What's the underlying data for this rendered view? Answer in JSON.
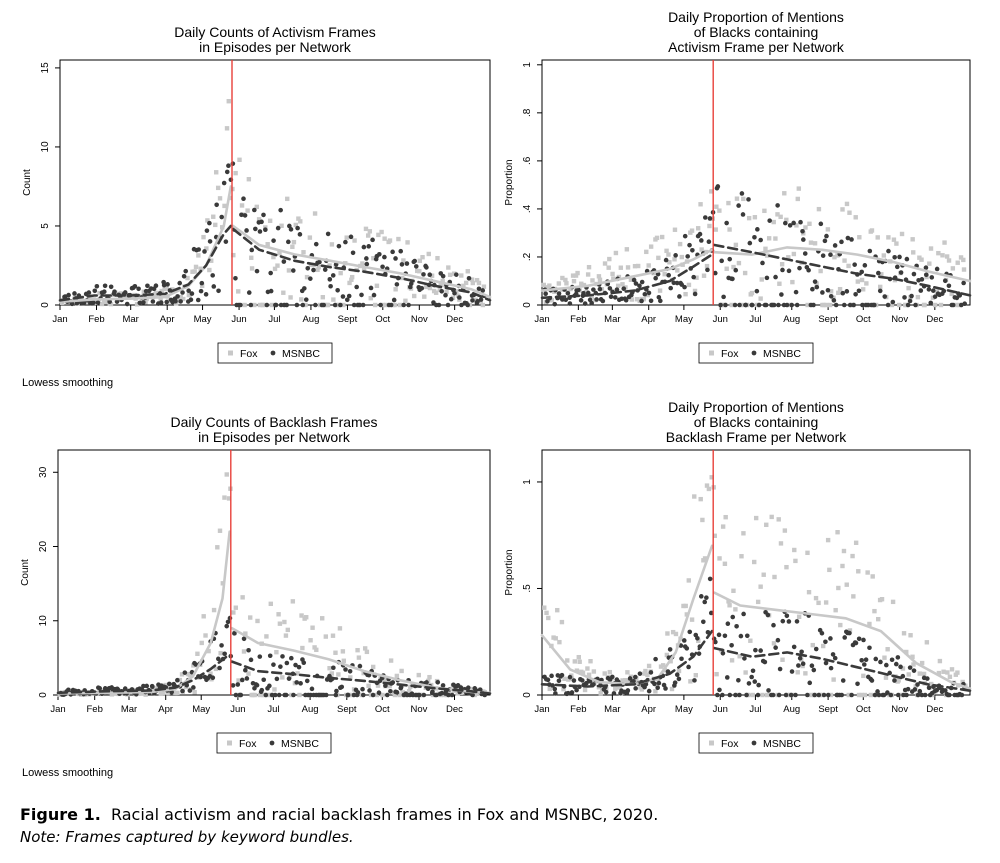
{
  "notes": {
    "smoothing_top": "Lowess smoothing",
    "smoothing_bottom": "Lowess smoothing"
  },
  "caption": {
    "label": "Figure 1.",
    "text": "Racial activism and racial backlash frames in Fox and MSNBC, 2020.",
    "note": "Note: Frames captured by keyword bundles."
  },
  "colors": {
    "fox": "#c8c8c8",
    "msnbc": "#3a3a3a",
    "event_line": "#e8403a",
    "frame": "#000000"
  },
  "chart_data": [
    {
      "type": "scatter",
      "title": [
        "Daily Counts of Activism Frames",
        "in Episodes per Network"
      ],
      "xlabel": "",
      "ylabel": "Count",
      "months": [
        "Jan",
        "Feb",
        "Mar",
        "Apr",
        "May",
        "Jun",
        "Jul",
        "Aug",
        "Sept",
        "Oct",
        "Nov",
        "Dec"
      ],
      "xlim": [
        1,
        366
      ],
      "ylim": [
        0,
        15.5
      ],
      "yticks": [
        0,
        5,
        10,
        15
      ],
      "ytick_labels": [
        "0",
        "5",
        "10",
        "15"
      ],
      "event_day": 147,
      "legend": [
        "Fox",
        "MSNBC"
      ],
      "series": [
        {
          "name": "Fox",
          "seed": 11,
          "lowess": [
            [
              1,
              0.2
            ],
            [
              30,
              0.35
            ],
            [
              60,
              0.4
            ],
            [
              90,
              0.5
            ],
            [
              110,
              1.2
            ],
            [
              125,
              2.5
            ],
            [
              140,
              5
            ],
            [
              146,
              7.5
            ],
            [
              148,
              5
            ],
            [
              170,
              3.8
            ],
            [
              200,
              3.2
            ],
            [
              230,
              2.8
            ],
            [
              260,
              2.4
            ],
            [
              290,
              2
            ],
            [
              320,
              1.5
            ],
            [
              350,
              1
            ],
            [
              366,
              0.5
            ]
          ]
        },
        {
          "name": "MSNBC",
          "seed": 23,
          "lowess": [
            [
              1,
              0.3
            ],
            [
              30,
              0.6
            ],
            [
              60,
              0.6
            ],
            [
              90,
              0.7
            ],
            [
              110,
              1.3
            ],
            [
              125,
              2.5
            ],
            [
              140,
              4.5
            ],
            [
              146,
              5
            ],
            [
              148,
              4.8
            ],
            [
              170,
              3.5
            ],
            [
              200,
              2.8
            ],
            [
              230,
              2.4
            ],
            [
              260,
              2.1
            ],
            [
              290,
              1.7
            ],
            [
              320,
              1.2
            ],
            [
              350,
              0.8
            ],
            [
              366,
              0.3
            ]
          ]
        }
      ]
    },
    {
      "type": "scatter",
      "title": [
        "Daily Proportion of Mentions",
        "of Blacks containing",
        "Activism Frame per Network"
      ],
      "xlabel": "",
      "ylabel": "Proportion",
      "months": [
        "Jan",
        "Feb",
        "Mar",
        "Apr",
        "May",
        "Jun",
        "Jul",
        "Aug",
        "Sept",
        "Oct",
        "Nov",
        "Dec"
      ],
      "xlim": [
        1,
        366
      ],
      "ylim": [
        0,
        1.02
      ],
      "yticks": [
        0,
        0.2,
        0.4,
        0.6,
        0.8,
        1
      ],
      "ytick_labels": [
        "0",
        ".2",
        ".4",
        ".6",
        ".8",
        "1"
      ],
      "event_day": 147,
      "legend": [
        "Fox",
        "MSNBC"
      ],
      "series": [
        {
          "name": "Fox",
          "seed": 37,
          "lowess": [
            [
              1,
              0.06
            ],
            [
              40,
              0.08
            ],
            [
              80,
              0.12
            ],
            [
              110,
              0.15
            ],
            [
              130,
              0.19
            ],
            [
              146,
              0.23
            ],
            [
              148,
              0.22
            ],
            [
              180,
              0.21
            ],
            [
              210,
              0.24
            ],
            [
              240,
              0.23
            ],
            [
              270,
              0.21
            ],
            [
              300,
              0.18
            ],
            [
              330,
              0.14
            ],
            [
              366,
              0.1
            ]
          ]
        },
        {
          "name": "MSNBC",
          "seed": 41,
          "lowess": [
            [
              1,
              0.03
            ],
            [
              40,
              0.04
            ],
            [
              80,
              0.06
            ],
            [
              110,
              0.1
            ],
            [
              130,
              0.16
            ],
            [
              146,
              0.21
            ],
            [
              148,
              0.25
            ],
            [
              180,
              0.22
            ],
            [
              210,
              0.19
            ],
            [
              240,
              0.16
            ],
            [
              270,
              0.13
            ],
            [
              300,
              0.11
            ],
            [
              330,
              0.08
            ],
            [
              366,
              0.04
            ]
          ]
        }
      ]
    },
    {
      "type": "scatter",
      "title": [
        "Daily Counts of Backlash Frames",
        "in Episodes per Network"
      ],
      "xlabel": "",
      "ylabel": "Count",
      "months": [
        "Jan",
        "Feb",
        "Mar",
        "Apr",
        "May",
        "Jun",
        "Jul",
        "Aug",
        "Sept",
        "Oct",
        "Nov",
        "Dec"
      ],
      "xlim": [
        1,
        366
      ],
      "ylim": [
        0,
        33
      ],
      "yticks": [
        0,
        10,
        20,
        30
      ],
      "ytick_labels": [
        "0",
        "10",
        "20",
        "30"
      ],
      "event_day": 147,
      "legend": [
        "Fox",
        "MSNBC"
      ],
      "series": [
        {
          "name": "Fox",
          "seed": 53,
          "lowess": [
            [
              1,
              0.2
            ],
            [
              40,
              0.3
            ],
            [
              80,
              0.4
            ],
            [
              100,
              0.8
            ],
            [
              115,
              2.5
            ],
            [
              130,
              7
            ],
            [
              140,
              13
            ],
            [
              146,
              22
            ],
            [
              148,
              9
            ],
            [
              170,
              7
            ],
            [
              200,
              6
            ],
            [
              230,
              4.8
            ],
            [
              260,
              3.2
            ],
            [
              290,
              2
            ],
            [
              320,
              1
            ],
            [
              350,
              0.4
            ],
            [
              366,
              0.3
            ]
          ]
        },
        {
          "name": "MSNBC",
          "seed": 67,
          "lowess": [
            [
              1,
              0.3
            ],
            [
              40,
              0.5
            ],
            [
              80,
              0.6
            ],
            [
              100,
              1
            ],
            [
              115,
              2
            ],
            [
              130,
              3.5
            ],
            [
              146,
              5.5
            ],
            [
              148,
              4.5
            ],
            [
              170,
              3.2
            ],
            [
              200,
              2.8
            ],
            [
              230,
              2.3
            ],
            [
              260,
              1.9
            ],
            [
              290,
              1.4
            ],
            [
              320,
              0.9
            ],
            [
              350,
              0.5
            ],
            [
              366,
              0.2
            ]
          ]
        }
      ]
    },
    {
      "type": "scatter",
      "title": [
        "Daily Proportion of Mentions",
        "of Blacks containing",
        "Backlash Frame per Network"
      ],
      "xlabel": "",
      "ylabel": "Proportion",
      "months": [
        "Jan",
        "Feb",
        "Mar",
        "Apr",
        "May",
        "Jun",
        "Jul",
        "Aug",
        "Sept",
        "Oct",
        "Nov",
        "Dec"
      ],
      "xlim": [
        1,
        366
      ],
      "ylim": [
        0,
        1.15
      ],
      "yticks": [
        0,
        0.5,
        1
      ],
      "ytick_labels": [
        "0",
        ".5",
        "1"
      ],
      "event_day": 147,
      "legend": [
        "Fox",
        "MSNBC"
      ],
      "series": [
        {
          "name": "Fox",
          "seed": 71,
          "lowess": [
            [
              1,
              0.28
            ],
            [
              25,
              0.12
            ],
            [
              50,
              0.06
            ],
            [
              80,
              0.05
            ],
            [
              100,
              0.08
            ],
            [
              115,
              0.2
            ],
            [
              130,
              0.45
            ],
            [
              146,
              0.7
            ],
            [
              148,
              0.48
            ],
            [
              170,
              0.42
            ],
            [
              200,
              0.4
            ],
            [
              230,
              0.38
            ],
            [
              260,
              0.36
            ],
            [
              290,
              0.3
            ],
            [
              320,
              0.15
            ],
            [
              350,
              0.06
            ],
            [
              366,
              0.03
            ]
          ]
        },
        {
          "name": "MSNBC",
          "seed": 83,
          "lowess": [
            [
              1,
              0.05
            ],
            [
              40,
              0.04
            ],
            [
              80,
              0.05
            ],
            [
              110,
              0.1
            ],
            [
              130,
              0.18
            ],
            [
              146,
              0.3
            ],
            [
              148,
              0.22
            ],
            [
              180,
              0.18
            ],
            [
              210,
              0.2
            ],
            [
              240,
              0.17
            ],
            [
              270,
              0.13
            ],
            [
              300,
              0.09
            ],
            [
              330,
              0.05
            ],
            [
              366,
              0.02
            ]
          ]
        }
      ]
    }
  ]
}
